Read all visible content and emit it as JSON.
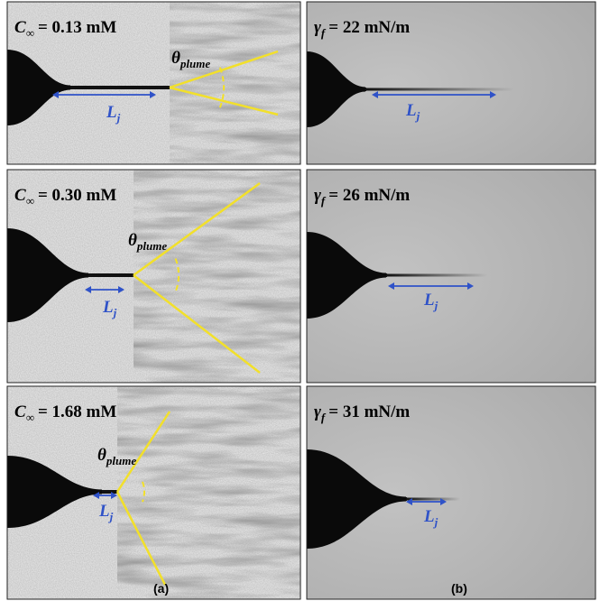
{
  "panels_a": [
    {
      "concentration": {
        "symbol": "C",
        "subscript": "∞",
        "text": "= 0.13 mM"
      },
      "angle_label": {
        "symbol": "θ",
        "subscript": "plume"
      },
      "length_label": {
        "symbol": "L",
        "subscript": "j"
      }
    },
    {
      "concentration": {
        "symbol": "C",
        "subscript": "∞",
        "text": "= 0.30 mM"
      },
      "angle_label": {
        "symbol": "θ",
        "subscript": "plume"
      },
      "length_label": {
        "symbol": "L",
        "subscript": "j"
      }
    },
    {
      "concentration": {
        "symbol": "C",
        "subscript": "∞",
        "text": "= 1.68 mM"
      },
      "angle_label": {
        "symbol": "θ",
        "subscript": "plume"
      },
      "length_label": {
        "symbol": "L",
        "subscript": "j"
      }
    }
  ],
  "panels_b": [
    {
      "tension": {
        "symbol": "γ",
        "subscript": "f",
        "text": "= 22 mN/m"
      },
      "length_label": {
        "symbol": "L",
        "subscript": "j"
      }
    },
    {
      "tension": {
        "symbol": "γ",
        "subscript": "f",
        "text": "= 26 mN/m"
      },
      "length_label": {
        "symbol": "L",
        "subscript": "j"
      }
    },
    {
      "tension": {
        "symbol": "γ",
        "subscript": "f",
        "text": "= 31 mN/m"
      },
      "length_label": {
        "symbol": "L",
        "subscript": "j"
      }
    }
  ],
  "captions": [
    "(a)",
    "(b)"
  ]
}
